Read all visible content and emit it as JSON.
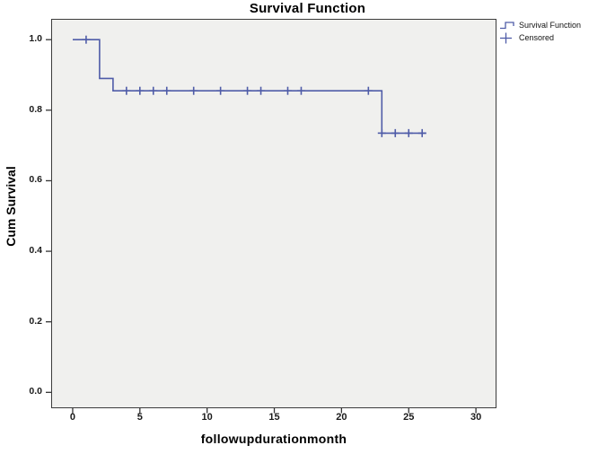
{
  "title": "Survival Function",
  "legend": {
    "position": "top-right",
    "items": [
      {
        "label": "Survival Function",
        "icon": "step-line-icon"
      },
      {
        "label": "Censored",
        "icon": "plus-icon"
      }
    ]
  },
  "colors": {
    "line": "#4F5CA8",
    "plot_background": "#F0F0EE",
    "border": "#3C3C3C",
    "axis": "#333333",
    "text": "#000000"
  },
  "chart_data": {
    "type": "line",
    "subtype": "kaplan-meier-step-function",
    "title": "Survival Function",
    "xlabel": "followupdurationmonth",
    "ylabel": "Cum Survival",
    "xlim": [
      -1.6,
      31.53
    ],
    "ylim": [
      -0.045,
      1.059
    ],
    "x_tick_values": [
      0,
      5,
      10,
      15,
      20,
      25,
      30
    ],
    "x_tick_labels": [
      "0",
      "5",
      "10",
      "15",
      "20",
      "25",
      "30"
    ],
    "y_tick_values": [
      0.0,
      0.2,
      0.4,
      0.6,
      0.8,
      1.0
    ],
    "y_tick_labels": [
      "0.0",
      "0.2",
      "0.4",
      "0.6",
      "0.8",
      "1.0"
    ],
    "grid": false,
    "legend_position": "top-right",
    "series": [
      {
        "name": "Survival Function",
        "step_points": [
          [
            0,
            1.0
          ],
          [
            2,
            1.0
          ],
          [
            2,
            0.89
          ],
          [
            3,
            0.89
          ],
          [
            3,
            0.855
          ],
          [
            23,
            0.855
          ],
          [
            23,
            0.735
          ],
          [
            26.3,
            0.735
          ]
        ]
      }
    ],
    "censored": {
      "name": "Censored",
      "points": [
        [
          1,
          1.0
        ],
        [
          4,
          0.855
        ],
        [
          5,
          0.855
        ],
        [
          6,
          0.855
        ],
        [
          7,
          0.855
        ],
        [
          9,
          0.855
        ],
        [
          11,
          0.855
        ],
        [
          13,
          0.855
        ],
        [
          14,
          0.855
        ],
        [
          16,
          0.855
        ],
        [
          17,
          0.855
        ],
        [
          22,
          0.855
        ],
        [
          23,
          0.735
        ],
        [
          24,
          0.735
        ],
        [
          25,
          0.735
        ],
        [
          26,
          0.735
        ]
      ]
    }
  }
}
